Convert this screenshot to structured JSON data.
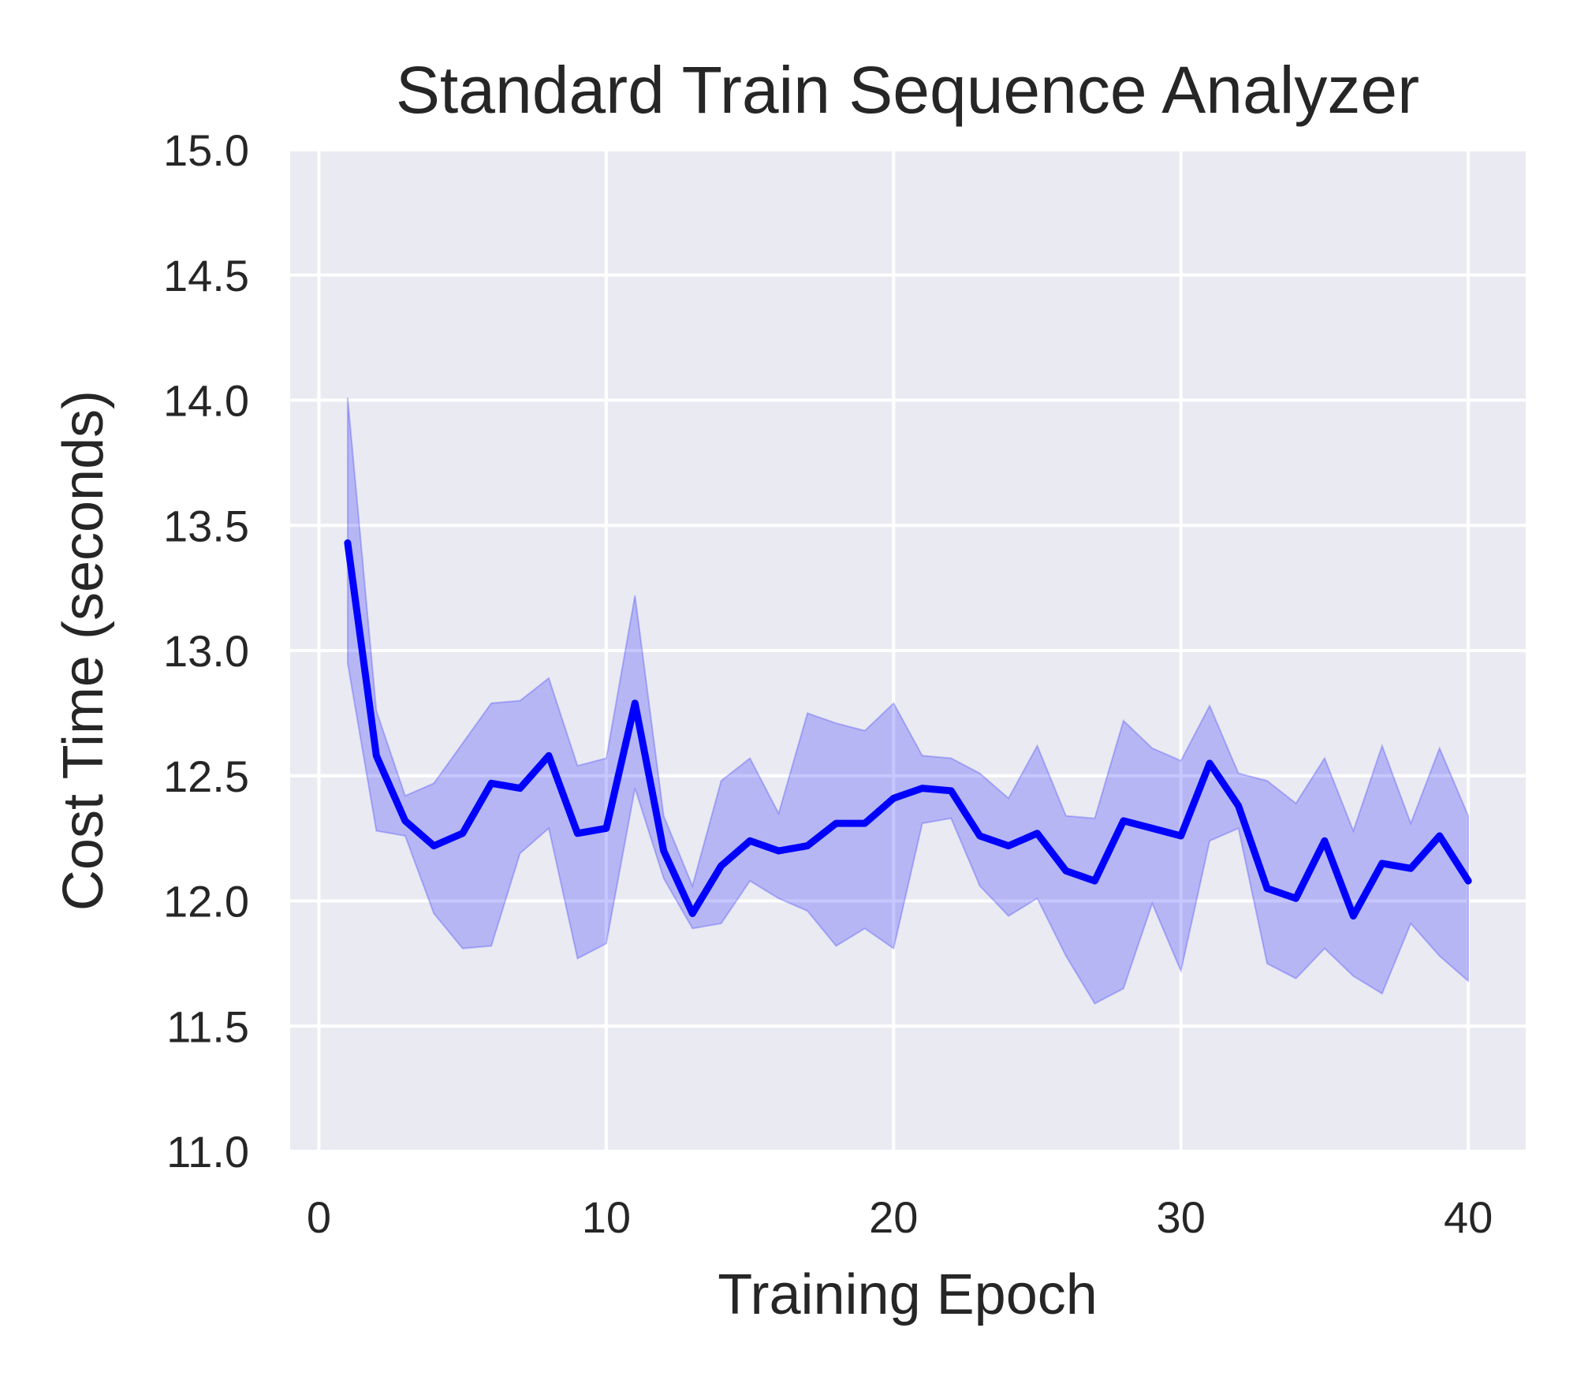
{
  "chart_data": {
    "type": "line",
    "title": "Standard Train Sequence Analyzer",
    "xlabel": "Training Epoch",
    "ylabel": "Cost Time (seconds)",
    "xlim": [
      -1,
      42
    ],
    "ylim": [
      11.0,
      15.0
    ],
    "xticks": [
      0,
      10,
      20,
      30,
      40
    ],
    "yticks": [
      11.0,
      11.5,
      12.0,
      12.5,
      13.0,
      13.5,
      14.0,
      14.5,
      15.0
    ],
    "grid": true,
    "series": [
      {
        "x": [
          1,
          2,
          3,
          4,
          5,
          6,
          7,
          8,
          9,
          10,
          11,
          12,
          13,
          14,
          15,
          16,
          17,
          18,
          19,
          20,
          21,
          22,
          23,
          24,
          25,
          26,
          27,
          28,
          29,
          30,
          31,
          32,
          33,
          34,
          35,
          36,
          37,
          38,
          39,
          40
        ],
        "values": [
          13.43,
          12.58,
          12.32,
          12.22,
          12.27,
          12.47,
          12.45,
          12.58,
          12.27,
          12.29,
          12.79,
          12.2,
          11.95,
          12.14,
          12.24,
          12.2,
          12.22,
          12.31,
          12.31,
          12.41,
          12.45,
          12.44,
          12.26,
          12.22,
          12.27,
          12.12,
          12.08,
          12.32,
          12.29,
          12.26,
          12.55,
          12.38,
          12.05,
          12.01,
          12.24,
          11.94,
          12.15,
          12.13,
          12.26,
          12.08
        ],
        "upper": [
          14.01,
          12.76,
          12.42,
          12.47,
          12.63,
          12.79,
          12.8,
          12.89,
          12.54,
          12.57,
          13.22,
          12.34,
          12.06,
          12.48,
          12.57,
          12.35,
          12.75,
          12.71,
          12.68,
          12.79,
          12.58,
          12.57,
          12.51,
          12.41,
          12.62,
          12.34,
          12.33,
          12.72,
          12.61,
          12.56,
          12.78,
          12.51,
          12.48,
          12.39,
          12.57,
          12.28,
          12.62,
          12.31,
          12.61,
          12.34
        ],
        "lower": [
          12.95,
          12.28,
          12.26,
          11.95,
          11.81,
          11.82,
          12.19,
          12.29,
          11.77,
          11.83,
          12.45,
          12.09,
          11.89,
          11.91,
          12.08,
          12.01,
          11.96,
          11.82,
          11.89,
          11.81,
          12.31,
          12.33,
          12.06,
          11.94,
          12.01,
          11.78,
          11.59,
          11.65,
          11.99,
          11.72,
          12.24,
          12.29,
          11.75,
          11.69,
          11.81,
          11.7,
          11.63,
          11.91,
          11.78,
          11.68
        ]
      }
    ],
    "colors": {
      "line": "#0000ff",
      "band": "#0000ff",
      "plot_background": "#eaeaf2",
      "grid": "#ffffff"
    }
  }
}
